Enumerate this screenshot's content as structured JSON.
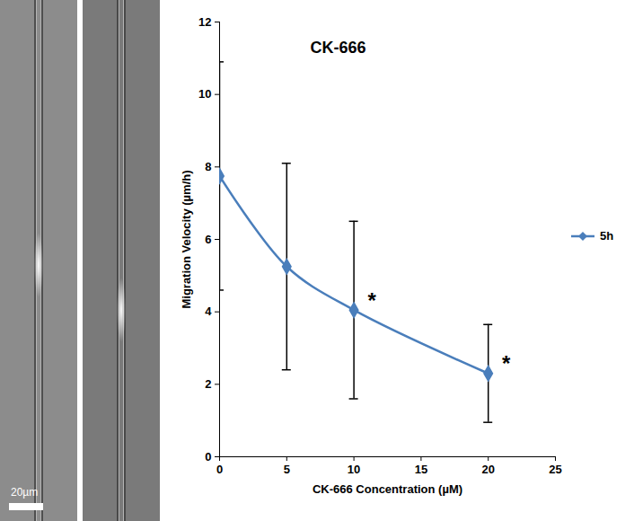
{
  "chart_data": {
    "type": "line",
    "title": "CK-666",
    "x_label": "CK-666 Concentration (µM)",
    "y_label": "Migration Velocity (µm/h)",
    "x": [
      0,
      5,
      10,
      20
    ],
    "series": [
      {
        "name": "5h",
        "color": "#4a7ebb",
        "values": [
          7.75,
          5.25,
          4.05,
          2.3
        ],
        "error": [
          3.15,
          2.85,
          2.45,
          1.35
        ],
        "marker": "diamond",
        "line_style": "smooth"
      }
    ],
    "xlim": [
      0,
      25
    ],
    "xticks": [
      0,
      5,
      10,
      15,
      20,
      25
    ],
    "ylim": [
      0,
      12
    ],
    "yticks": [
      0,
      2,
      4,
      6,
      8,
      10,
      12
    ],
    "legend": "right",
    "annotations": [
      {
        "text": "*",
        "x": 10
      },
      {
        "text": "*",
        "x": 20
      }
    ]
  },
  "images": {
    "scale_bar": "20µm"
  }
}
